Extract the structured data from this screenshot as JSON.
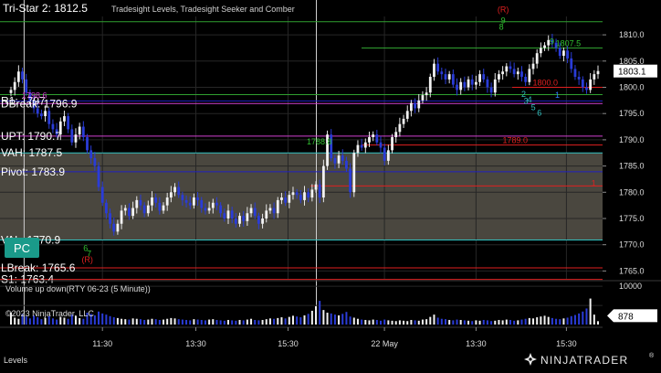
{
  "window": {
    "status_label": "Levels",
    "copyright": "©2023 NinjaTrader, LLC",
    "brand": "NINJATRADER",
    "brand_mark": "®"
  },
  "price_panel": {
    "indicator_title": "Tri-Star 2: 1812.5",
    "indicator_subtitle": "Tradesight Levels, Tradesight Seeker and Comber",
    "last_price": "1803.1",
    "pc_button": "PC",
    "level_labels": [
      {
        "text": "Tri-Star 2: 1812.5",
        "price": 1812.5,
        "color": "#ffffff"
      },
      {
        "text": "R1: 1797",
        "price": 1797.4,
        "color": "#ffffff"
      },
      {
        "text": "DBreak: 1796.9",
        "price": 1796.9,
        "color": "#ffffff"
      },
      {
        "text": "1798.6",
        "price": 1798.6,
        "color": "#d040d0"
      },
      {
        "text": "UPT: 1790.7",
        "price": 1790.7,
        "color": "#ffffff"
      },
      {
        "text": "VAH: 1787.5",
        "price": 1787.5,
        "color": "#ffffff"
      },
      {
        "text": "Pivot: 1783.9",
        "price": 1783.9,
        "color": "#ffffff"
      },
      {
        "text": "VAL: 1770.9",
        "price": 1770.9,
        "color": "#ffffff"
      },
      {
        "text": "LBreak: 1765.6",
        "price": 1765.6,
        "color": "#ffffff"
      },
      {
        "text": "S1: 1763.4",
        "price": 1763.4,
        "color": "#ffffff"
      }
    ],
    "inline_labels": [
      {
        "text": "1807.5",
        "price": 1807.5,
        "color": "#30c030"
      },
      {
        "text": "1788.8",
        "price": 1788.8,
        "color": "#30c030"
      },
      {
        "text": "1789.0",
        "price": 1789.0,
        "color": "#e02020"
      },
      {
        "text": "1800.0",
        "price": 1800.0,
        "color": "#e02020"
      }
    ],
    "markers": [
      {
        "text": "(R)",
        "price": 1814.3,
        "color": "#e02020",
        "x_index": 0.835
      },
      {
        "text": "(R)",
        "price": 1766.6,
        "color": "#e02020",
        "x_index": 0.145
      },
      {
        "text": "9",
        "price": 1812.2,
        "color": "#30c030",
        "x_index": 0.835
      },
      {
        "text": "8",
        "price": 1811.0,
        "color": "#30c030",
        "x_index": 0.832
      },
      {
        "text": "7",
        "price": 1767.8,
        "color": "#30c030",
        "x_index": 0.148
      },
      {
        "text": "6",
        "price": 1768.8,
        "color": "#30c030",
        "x_index": 0.142
      },
      {
        "text": "9",
        "price": 1808.2,
        "color": "#30c030",
        "x_index": 0.916
      },
      {
        "text": "1",
        "price": 1798.0,
        "color": "#3080ff",
        "x_index": 0.925
      },
      {
        "text": "2",
        "price": 1798.2,
        "color": "#30c0c0",
        "x_index": 0.869
      },
      {
        "text": "3",
        "price": 1796.9,
        "color": "#30c0c0",
        "x_index": 0.873
      },
      {
        "text": "4",
        "price": 1797.1,
        "color": "#30c0c0",
        "x_index": 0.879
      },
      {
        "text": "5",
        "price": 1795.6,
        "color": "#30c0c0",
        "x_index": 0.885
      },
      {
        "text": "6",
        "price": 1794.6,
        "color": "#30c0c0",
        "x_index": 0.895
      },
      {
        "text": "1",
        "price": 1781.2,
        "color": "#e02020",
        "x_index": 0.985
      }
    ]
  },
  "volume_panel": {
    "title": "Volume up down(RTY 06-23 (5 Minute))",
    "last_value": "878"
  },
  "chart_data": [
    {
      "type": "candlestick",
      "title": "Tri-Star 2: 1812.5",
      "ylim": [
        1763.5,
        1813.5
      ],
      "y_ticks": [
        1765.0,
        1770.0,
        1775.0,
        1780.0,
        1785.0,
        1790.0,
        1795.0,
        1800.0,
        1805.0,
        1810.0
      ],
      "x_tick_labels": [
        "11:30",
        "13:30",
        "15:30",
        "22 May",
        "13:30",
        "15:30"
      ],
      "x_tick_positions": [
        0.17,
        0.325,
        0.478,
        0.638,
        0.79,
        0.94
      ],
      "session_breaks": [
        0.04,
        0.525
      ],
      "value_area": [
        1770.9,
        1787.5
      ],
      "levels": [
        {
          "name": "Tri-Star 2",
          "price": 1812.5,
          "color": "#30a030"
        },
        {
          "name": "1807.5",
          "price": 1807.5,
          "color": "#30a030"
        },
        {
          "name": "R1",
          "price": 1797.4,
          "color": "#2020c0"
        },
        {
          "name": "DBreak",
          "price": 1796.9,
          "color": "#d040d0"
        },
        {
          "name": "1798.6",
          "price": 1798.6,
          "color": "#30a030"
        },
        {
          "name": "1800.0",
          "price": 1800.0,
          "color": "#e02020"
        },
        {
          "name": "UPT",
          "price": 1790.7,
          "color": "#d040d0"
        },
        {
          "name": "1789.0",
          "price": 1789.0,
          "color": "#e02020"
        },
        {
          "name": "VAH",
          "price": 1787.5,
          "color": "#30c0c0"
        },
        {
          "name": "Pivot",
          "price": 1783.9,
          "color": "#2020c0"
        },
        {
          "name": "1781.2",
          "price": 1781.2,
          "color": "#e02020"
        },
        {
          "name": "VAL",
          "price": 1770.9,
          "color": "#30c0c0"
        },
        {
          "name": "LBreak",
          "price": 1765.6,
          "color": "#e02020"
        },
        {
          "name": "S1",
          "price": 1763.4,
          "color": "#e02020"
        }
      ],
      "close_series": [
        1799.5,
        1801.0,
        1803.0,
        1801.5,
        1799.0,
        1797.5,
        1796.0,
        1795.0,
        1794.5,
        1795.5,
        1793.0,
        1792.0,
        1791.0,
        1793.5,
        1794.5,
        1792.0,
        1789.5,
        1791.0,
        1792.5,
        1790.5,
        1788.0,
        1786.5,
        1785.0,
        1781.0,
        1778.0,
        1776.0,
        1774.0,
        1772.5,
        1774.0,
        1776.5,
        1777.0,
        1775.5,
        1777.0,
        1778.5,
        1777.5,
        1776.0,
        1777.5,
        1779.0,
        1778.0,
        1776.5,
        1777.5,
        1779.0,
        1780.0,
        1781.0,
        1779.5,
        1778.5,
        1778.0,
        1777.5,
        1779.0,
        1778.5,
        1777.0,
        1776.5,
        1777.0,
        1778.0,
        1777.5,
        1776.0,
        1775.0,
        1776.5,
        1775.0,
        1774.0,
        1775.5,
        1774.5,
        1776.0,
        1777.0,
        1775.5,
        1774.0,
        1775.0,
        1776.5,
        1777.0,
        1776.0,
        1778.5,
        1779.0,
        1778.0,
        1779.5,
        1780.0,
        1779.5,
        1778.5,
        1780.0,
        1779.0,
        1780.5,
        1781.5,
        1779.0,
        1785.0,
        1791.0,
        1786.5,
        1785.5,
        1787.0,
        1786.0,
        1784.5,
        1780.0,
        1787.5,
        1789.0,
        1788.5,
        1789.5,
        1790.5,
        1791.0,
        1789.5,
        1788.5,
        1786.0,
        1788.0,
        1790.5,
        1791.5,
        1793.0,
        1794.0,
        1795.5,
        1797.0,
        1796.0,
        1797.5,
        1798.5,
        1799.0,
        1802.0,
        1804.5,
        1803.0,
        1802.5,
        1801.5,
        1802.5,
        1800.5,
        1799.5,
        1801.0,
        1800.0,
        1801.5,
        1800.5,
        1801.0,
        1802.5,
        1801.5,
        1800.0,
        1799.0,
        1801.5,
        1802.5,
        1803.0,
        1804.0,
        1803.5,
        1802.5,
        1803.0,
        1802.0,
        1801.0,
        1803.5,
        1804.5,
        1806.5,
        1807.5,
        1808.0,
        1809.0,
        1808.5,
        1807.5,
        1806.0,
        1807.0,
        1805.5,
        1803.5,
        1802.0,
        1801.5,
        1800.0,
        1799.5,
        1801.5,
        1802.5,
        1803.1
      ]
    },
    {
      "type": "bar",
      "title": "Volume up down(RTY 06-23 (5 Minute))",
      "ylim": [
        0,
        11000
      ],
      "y_ticks": [
        5000,
        10000
      ],
      "last_value": 878,
      "values": [
        3200,
        1800,
        1500,
        2800,
        2100,
        1600,
        2400,
        1900,
        1400,
        1700,
        2200,
        1600,
        1300,
        2000,
        1800,
        1500,
        2600,
        2300,
        1700,
        1500,
        3100,
        2800,
        2400,
        3400,
        2900,
        2600,
        2200,
        1900,
        1700,
        1500,
        1400,
        1300,
        1600,
        1500,
        1400,
        1200,
        1300,
        1500,
        1400,
        1200,
        1300,
        1500,
        1700,
        1600,
        1400,
        1300,
        1200,
        1100,
        1400,
        1300,
        1200,
        1100,
        1300,
        1400,
        1200,
        1100,
        1000,
        1200,
        1100,
        1000,
        1200,
        1100,
        1300,
        1500,
        1200,
        1100,
        1200,
        1400,
        1600,
        1500,
        1700,
        1900,
        1600,
        2000,
        2300,
        2100,
        1900,
        2400,
        2800,
        3600,
        4800,
        6200,
        3800,
        3100,
        2900,
        2600,
        2400,
        2800,
        3300,
        2100,
        1800,
        1500,
        1300,
        1200,
        1100,
        1300,
        1200,
        1000,
        1300,
        1100,
        1000,
        900,
        1100,
        1000,
        900,
        1200,
        1100,
        1000,
        1300,
        1400,
        2000,
        2600,
        1800,
        1500,
        1400,
        1200,
        1100,
        1300,
        1200,
        1100,
        1000,
        900,
        1100,
        1000,
        1200,
        1100,
        900,
        1000,
        1200,
        1100,
        1300,
        1200,
        1000,
        1100,
        1300,
        1500,
        1700,
        1600,
        1900,
        2100,
        2300,
        2000,
        1700,
        1500,
        1400,
        1600,
        1800,
        2200,
        2500,
        2900,
        3400,
        4200,
        6800,
        2600,
        878
      ]
    }
  ]
}
